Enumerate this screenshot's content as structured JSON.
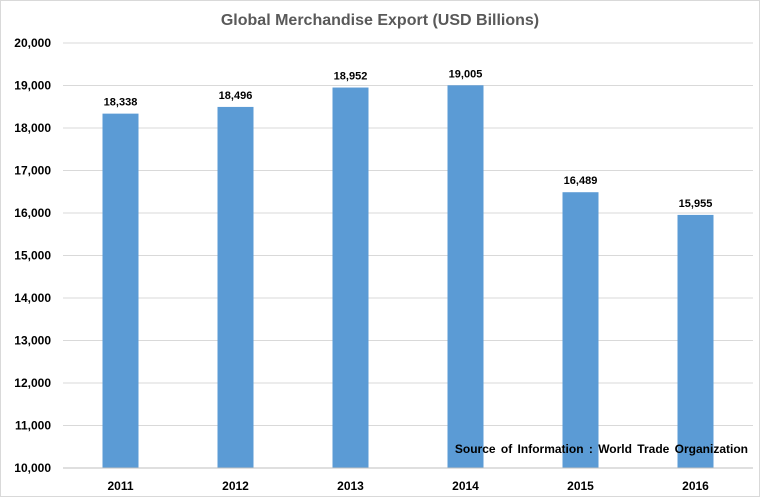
{
  "chart_data": {
    "type": "bar",
    "title": "Global Merchandise Export (USD Billions)",
    "xlabel": "",
    "ylabel": "",
    "categories": [
      "2011",
      "2012",
      "2013",
      "2014",
      "2015",
      "2016"
    ],
    "values": [
      18338,
      18496,
      18952,
      19005,
      16489,
      15955
    ],
    "data_labels": [
      "18,338",
      "18,496",
      "18,952",
      "19,005",
      "16,489",
      "15,955"
    ],
    "ylim": [
      10000,
      20000
    ],
    "yticks": [
      "10,000",
      "11,000",
      "12,000",
      "13,000",
      "14,000",
      "15,000",
      "16,000",
      "17,000",
      "18,000",
      "19,000",
      "20,000"
    ],
    "grid": true,
    "legend": "none",
    "bar_color": "#5b9bd5",
    "annotation": "Source of Information : World Trade Organization"
  }
}
